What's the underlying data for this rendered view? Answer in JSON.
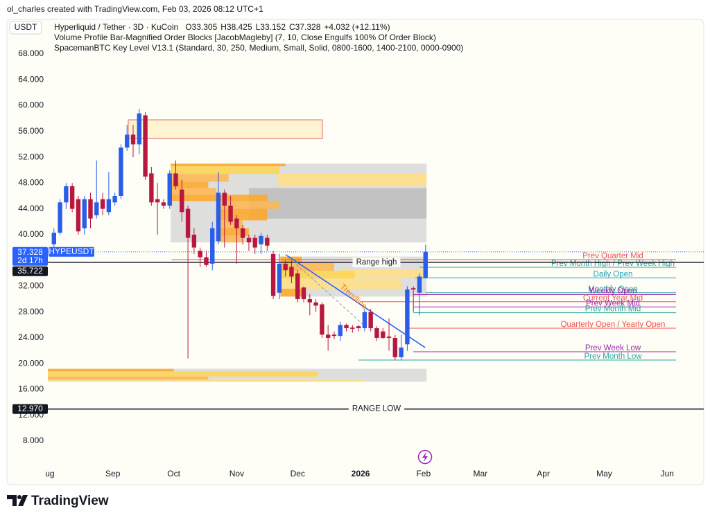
{
  "header": {
    "credit": "ol_charles created with TradingView.com, Feb 03, 2026 08:12 UTC+1",
    "currency": "USDT"
  },
  "footer": {
    "brand": "TradingView"
  },
  "chart_data": {
    "type": "candlestick",
    "legend": {
      "symbol": "Hyperliquid / Tether · 3D · KuCoin",
      "ohlc": [
        "O33.305",
        "H38.425",
        "L33.152",
        "C37.328",
        "+4.032 (+12.11%)"
      ],
      "indicators": [
        "Volume Profile Bar-Magnified Order Blocks [JacobMagleby] (7, 10, Close Engulfs 100% Of Order Block)",
        "SpacemanBTC Key Level V13.1 (Standard, 30, 250, Medium, Small, Solid, 0800-1600, 1400-2100, 0000-0900)"
      ]
    },
    "up_color": "#2a5ee8",
    "down_color": "#b8173f",
    "x": [
      2,
      5,
      8,
      11,
      14,
      17,
      20,
      23,
      26,
      29,
      32,
      35,
      38,
      41,
      44,
      47,
      50,
      53,
      56,
      59,
      62,
      65,
      68,
      71,
      74,
      77,
      80,
      83,
      86,
      89,
      92,
      95,
      98,
      101,
      104,
      107,
      110,
      113,
      116,
      119,
      122,
      125,
      128,
      131,
      134,
      137,
      140,
      143,
      146,
      149,
      152,
      155,
      158,
      161,
      164,
      167,
      170,
      173,
      176,
      179,
      182,
      185
    ],
    "open": [
      38.5,
      40.3,
      45,
      47.5,
      45.5,
      41,
      45.5,
      43,
      45.5,
      43.5,
      45,
      46,
      53.5,
      55.5,
      54,
      58.5,
      49.5,
      45.5,
      45,
      44.5,
      49.5,
      47,
      44,
      40,
      37.5,
      36.5,
      35.5,
      39,
      46.5,
      44.5,
      42.5,
      41,
      39.5,
      39.5,
      38.5,
      39.5,
      37,
      31,
      35.5,
      35,
      34,
      31.8,
      30,
      29.5,
      29.2,
      24.5,
      24.5,
      24.3,
      26,
      25.6,
      25.8,
      25.5,
      28,
      25.5,
      25,
      24.2,
      24,
      21,
      23,
      31.7,
      31,
      33.305
    ],
    "high": [
      41,
      45.5,
      48,
      48,
      46,
      46,
      46.5,
      51.5,
      46.5,
      49.7,
      46.5,
      54,
      57,
      57,
      59.5,
      59,
      50.5,
      48,
      45.5,
      50,
      51.5,
      48.5,
      44.5,
      41,
      38,
      37.5,
      42,
      49.7,
      47,
      46,
      43,
      41.5,
      40,
      40,
      40.3,
      40,
      37.5,
      37,
      36,
      36,
      34.5,
      32,
      30.8,
      30,
      29.5,
      26,
      25,
      26.5,
      26.2,
      26,
      26,
      28.5,
      28.5,
      25.8,
      25.5,
      27,
      24.5,
      24.5,
      32,
      32,
      34,
      38.425
    ],
    "low": [
      37.8,
      40,
      44,
      43.5,
      40,
      40,
      41,
      42.5,
      43,
      43,
      44.5,
      45.5,
      53,
      52,
      52.5,
      48.5,
      44.5,
      40,
      44,
      44,
      47,
      42,
      20.8,
      37,
      35,
      35,
      34.5,
      38.5,
      38,
      41.5,
      35.5,
      38.5,
      37.5,
      37,
      37,
      37.5,
      30,
      30,
      33.5,
      32.5,
      29.5,
      29.5,
      27.5,
      28,
      24,
      22,
      23.8,
      23.5,
      25,
      24.8,
      25,
      25,
      25,
      23.5,
      23.8,
      22,
      20.5,
      20.5,
      22,
      28,
      27.5,
      33.152
    ],
    "close": [
      40.3,
      45,
      47.5,
      44,
      40.5,
      45.5,
      42.5,
      45,
      44,
      45.5,
      46,
      53.5,
      55.5,
      54,
      58.8,
      49,
      45,
      45,
      44.5,
      49.5,
      47.5,
      43.5,
      39.5,
      38,
      36.5,
      35.3,
      41,
      46.5,
      44.5,
      42,
      41,
      39.5,
      38.8,
      38,
      39.8,
      38.3,
      30.5,
      35.5,
      34.5,
      33.5,
      30,
      30,
      29.5,
      29,
      24.5,
      24,
      24.3,
      26,
      25.5,
      25.4,
      25.5,
      28,
      25.5,
      24,
      24,
      24,
      21,
      22.5,
      31.5,
      31.5,
      33.5,
      37.328
    ],
    "xlim": [
      -1,
      322
    ],
    "xticks": [
      {
        "value": 0,
        "label": "ug"
      },
      {
        "value": 31,
        "label": "Sep"
      },
      {
        "value": 61,
        "label": "Oct"
      },
      {
        "value": 92,
        "label": "Nov"
      },
      {
        "value": 122,
        "label": "Dec"
      },
      {
        "value": 153,
        "label": "2026"
      },
      {
        "value": 184,
        "label": "Feb"
      },
      {
        "value": 212,
        "label": "Mar"
      },
      {
        "value": 243,
        "label": "Apr"
      },
      {
        "value": 273,
        "label": "May"
      },
      {
        "value": 304,
        "label": "Jun"
      }
    ],
    "ylim": [
      4.46,
      73.37
    ],
    "yticks": [
      {
        "value": 8,
        "label": "8.000"
      },
      {
        "value": 12,
        "label": "12.000"
      },
      {
        "value": 16,
        "label": "16.000"
      },
      {
        "value": 20,
        "label": "20.000"
      },
      {
        "value": 24,
        "label": "24.000"
      },
      {
        "value": 28,
        "label": "28.000"
      },
      {
        "value": 32,
        "label": "32.000"
      },
      {
        "value": 36,
        "label": "36.000"
      },
      {
        "value": 40,
        "label": "40.000"
      },
      {
        "value": 44,
        "label": "44.000"
      },
      {
        "value": 48,
        "label": "48.000"
      },
      {
        "value": 52,
        "label": "52.000"
      },
      {
        "value": 56,
        "label": "56.000"
      },
      {
        "value": 60,
        "label": "60.000"
      },
      {
        "value": 64,
        "label": "64.000"
      },
      {
        "value": 68,
        "label": "68.000"
      }
    ],
    "last_price": {
      "value": 37.328,
      "label": "37.328",
      "countdown": "2d 17h",
      "tag": "HYPEUSDT",
      "color": "#2962ff"
    },
    "range_lines": [
      {
        "value": 35.722,
        "label": "35.722",
        "text": "Range high"
      },
      {
        "value": 12.97,
        "label": "12.970",
        "text": "RANGE LOW"
      }
    ],
    "key_levels": [
      {
        "text": "Prev Quarter Mid",
        "value": 36.12,
        "x0": 60,
        "color": "#ef5350"
      },
      {
        "text": "Prev Month High / Prev Week High",
        "value": 34.94,
        "x0": 182,
        "color": "#26a69a"
      },
      {
        "text": "Daily Open",
        "value": 33.305,
        "x0": 180,
        "color": "#1ea2b8"
      },
      {
        "text": "Monthly Open",
        "value": 31.0,
        "x0": 185,
        "color": "#26a69a"
      },
      {
        "text": "Weekly Open",
        "value": 30.7,
        "x0": 179,
        "color": "#9c27b0"
      },
      {
        "text": "Current Year Mid",
        "value": 29.6,
        "x0": 153,
        "color": "#ef5350"
      },
      {
        "text": "Prev Week Mid",
        "value": 28.8,
        "x0": 179,
        "color": "#9c27b0"
      },
      {
        "text": "Prev Month Mid",
        "value": 27.9,
        "x0": 179,
        "color": "#26a69a"
      },
      {
        "text": "Quarterly Open / Yearly Open",
        "value": 25.5,
        "x0": 175,
        "color": "#ef5350"
      },
      {
        "text": "Prev Week Low",
        "value": 21.85,
        "x0": 179,
        "color": "#9c27b0"
      },
      {
        "text": "Prev Month Low",
        "value": 20.56,
        "x0": 152,
        "color": "#26a69a"
      }
    ],
    "zones": [
      {
        "low": 54.9,
        "high": 57.8,
        "x0": 38.6,
        "x1": 134.2,
        "fill": "#fff3cd",
        "stroke": "#e06666",
        "bars": []
      },
      {
        "low": 38.8,
        "high": 51.0,
        "x0": 59.5,
        "x1": 185.5,
        "fill": "#dadada",
        "bars": [
          {
            "low": 42.5,
            "high": 47.2,
            "x0": 98,
            "x1": 185.5,
            "color": "#bdbdbd"
          },
          {
            "low": 47.5,
            "high": 49.5,
            "x0": 112,
            "x1": 185.5,
            "color": "#ffe082"
          },
          {
            "low": 50.6,
            "high": 51.0,
            "x0": 59.5,
            "x1": 116,
            "color": "#ffa726"
          },
          {
            "low": 49.4,
            "high": 50.6,
            "x0": 59.5,
            "x1": 113,
            "color": "#ffd54f"
          },
          {
            "low": 48.2,
            "high": 49.4,
            "x0": 59.5,
            "x1": 88,
            "color": "#ffb74d"
          },
          {
            "low": 47.2,
            "high": 48.2,
            "x0": 59.5,
            "x1": 78,
            "color": "#ffa726"
          },
          {
            "low": 46.2,
            "high": 47.2,
            "x0": 59.5,
            "x1": 82,
            "color": "#ffb74d"
          },
          {
            "low": 45.2,
            "high": 46.2,
            "x0": 59.5,
            "x1": 107,
            "color": "#ffa726"
          },
          {
            "low": 44.0,
            "high": 45.2,
            "x0": 83,
            "x1": 113,
            "color": "#ffb74d"
          },
          {
            "low": 42.2,
            "high": 44.0,
            "x0": 83,
            "x1": 107,
            "color": "#ffa726"
          },
          {
            "low": 41.0,
            "high": 42.2,
            "x0": 83,
            "x1": 95,
            "color": "#ffb74d"
          },
          {
            "low": 39.8,
            "high": 41.0,
            "x0": 83,
            "x1": 98,
            "color": "#ffa726"
          },
          {
            "low": 38.8,
            "high": 39.8,
            "x0": 83,
            "x1": 95,
            "color": "#ffb74d"
          }
        ]
      },
      {
        "low": 30.4,
        "high": 36.6,
        "x0": 113.5,
        "x1": 185.5,
        "fill": "#dadada",
        "bars": [
          {
            "low": 33.4,
            "high": 34.6,
            "x0": 143,
            "x1": 185.5,
            "color": "#ffe082"
          },
          {
            "low": 35.6,
            "high": 36.6,
            "x0": 113.5,
            "x1": 124,
            "color": "#ffa726"
          },
          {
            "low": 34.4,
            "high": 35.6,
            "x0": 113.5,
            "x1": 140,
            "color": "#ffb74d"
          },
          {
            "low": 33.2,
            "high": 34.4,
            "x0": 113.5,
            "x1": 150,
            "color": "#ffd54f"
          },
          {
            "low": 31.6,
            "high": 33.2,
            "x0": 113.5,
            "x1": 173,
            "color": "#ffe082"
          },
          {
            "low": 30.4,
            "high": 31.6,
            "x0": 113.5,
            "x1": 126,
            "color": "#ffa726"
          }
        ]
      },
      {
        "low": 17.2,
        "high": 19.2,
        "x0": -1,
        "x1": 185.5,
        "fill": "#dadada",
        "bars": [
          {
            "low": 18.8,
            "high": 19.2,
            "x0": -1,
            "x1": 61,
            "color": "#ffa726"
          },
          {
            "low": 18.0,
            "high": 18.8,
            "x0": -1,
            "x1": 132,
            "color": "#ffd54f"
          },
          {
            "low": 17.5,
            "high": 18.0,
            "x0": -1,
            "x1": 78,
            "color": "#ffb74d"
          },
          {
            "low": 17.2,
            "high": 17.5,
            "x0": -1,
            "x1": 155,
            "color": "#ffe082"
          }
        ]
      }
    ],
    "trendlines": [
      {
        "x0": 116.1,
        "p0": 36.9,
        "x1": 184.8,
        "p1": 22.5,
        "color": "#2962ff",
        "dash": false
      },
      {
        "x0": 116.1,
        "p0": 36.9,
        "x1": 154.5,
        "p1": 26.0,
        "color": "#8c9bb0",
        "dash": true,
        "label": "Trendline",
        "label_color": "#f57c00"
      }
    ]
  }
}
